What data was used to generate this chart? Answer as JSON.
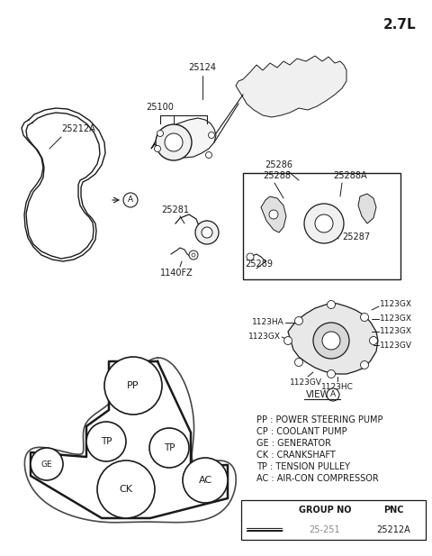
{
  "title_text": "2.7L",
  "background_color": "#ffffff",
  "legend_items": [
    "PP : POWER STEERING PUMP",
    "CP : COOLANT PUMP",
    "GE : GENERATOR",
    "CK : CRANKSHAFT",
    "TP : TENSION PULLEY",
    "AC : AIR-CON COMPRESSOR"
  ],
  "table_col1_header": "GROUP NO",
  "table_col2_header": "PNC",
  "table_row1_col1": "25-251",
  "table_row1_col2": "25212A",
  "color_main": "#1a1a1a",
  "color_gray": "#888888",
  "color_bg": "#ffffff"
}
